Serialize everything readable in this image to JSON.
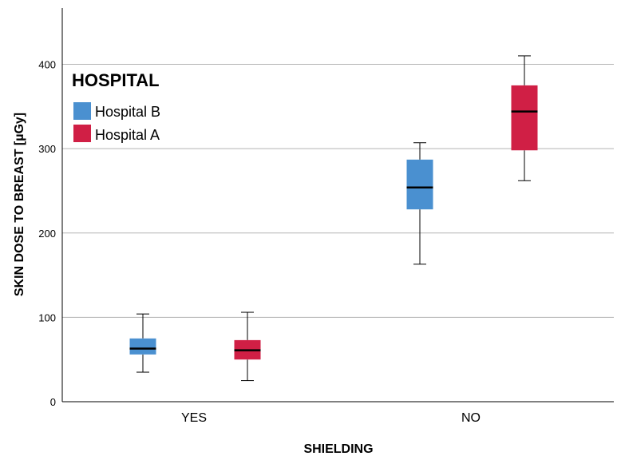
{
  "chart_data": {
    "type": "boxplot",
    "xlabel": "SHIELDING",
    "ylabel": "SKIN DOSE TO BREAST [µGy]",
    "ylim": [
      0,
      470
    ],
    "yticks": [
      0,
      100,
      200,
      300,
      400
    ],
    "grid": true,
    "categories": [
      "YES",
      "NO"
    ],
    "legend": {
      "title": "HOSPITAL",
      "placement": "top-left"
    },
    "series": [
      {
        "name": "Hospital B",
        "color": "#4a90d0",
        "boxes": [
          {
            "min": 35,
            "q1": 56,
            "median": 63,
            "q3": 75,
            "max": 104
          },
          {
            "min": 163,
            "q1": 228,
            "median": 254,
            "q3": 287,
            "max": 307
          }
        ]
      },
      {
        "name": "Hospital A",
        "color": "#d01f45",
        "boxes": [
          {
            "min": 25,
            "q1": 50,
            "median": 61,
            "q3": 73,
            "max": 106
          },
          {
            "min": 262,
            "q1": 298,
            "median": 344,
            "q3": 375,
            "max": 410
          }
        ]
      }
    ]
  }
}
